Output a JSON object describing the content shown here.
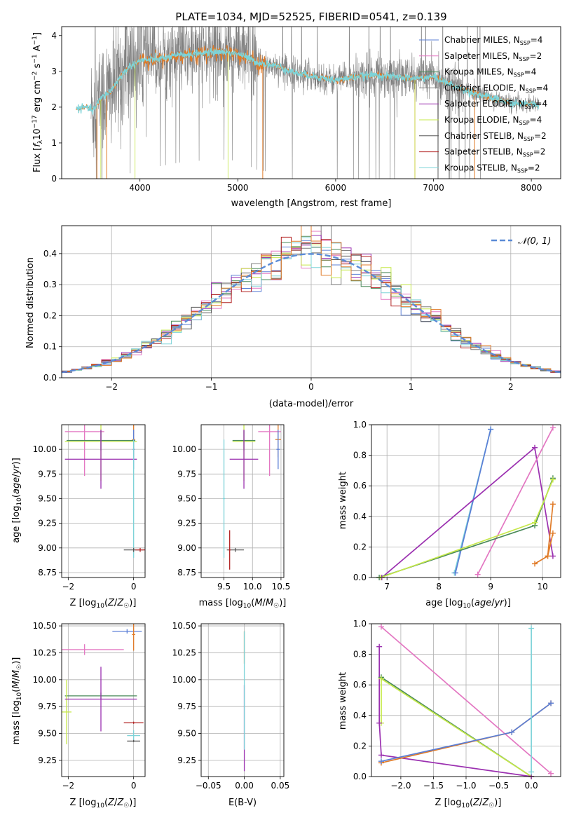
{
  "figure": {
    "title": "PLATE=1034, MJD=52525, FIBERID=0541, z=0.139"
  },
  "colors": {
    "Chabrier MILES": "#5b7fd6",
    "Salpeter MILES": "#e377c2",
    "Kroupa MILES": "#4a8a5a",
    "Chabrier ELODIE": "#7f7f7f",
    "Salpeter ELODIE": "#9b30b0",
    "Kroupa ELODIE": "#c6e84a",
    "Chabrier STELIB": "#555555",
    "Salpeter STELIB": "#b22222",
    "Kroupa STELIB": "#7dd3d8",
    "orange": "#e07b28"
  },
  "chart_data": [
    {
      "id": "spectrum",
      "type": "line",
      "xlabel": "wavelength [Angstrom, rest frame]",
      "ylabel": "Flux [f_λ10^-17 erg cm^-2 s^-1 A^-1]",
      "xlim": [
        3200,
        8300
      ],
      "ylim": [
        0,
        4.25
      ],
      "xticks": [
        4000,
        5000,
        6000,
        7000,
        8000
      ],
      "yticks": [
        0,
        1,
        2,
        3,
        4
      ],
      "legend": [
        {
          "name": "Chabrier MILES",
          "nssp": "4"
        },
        {
          "name": "Salpeter MILES",
          "nssp": "2"
        },
        {
          "name": "Kroupa MILES",
          "nssp": "4"
        },
        {
          "name": "Chabrier ELODIE",
          "nssp": "4"
        },
        {
          "name": "Salpeter ELODIE",
          "nssp": "4"
        },
        {
          "name": "Kroupa ELODIE",
          "nssp": "4"
        },
        {
          "name": "Chabrier STELIB",
          "nssp": "2"
        },
        {
          "name": "Salpeter STELIB",
          "nssp": "2"
        },
        {
          "name": "Kroupa STELIB",
          "nssp": "2"
        }
      ],
      "legend_position": "top-right",
      "model_x": [
        3350,
        3450,
        3520,
        3600,
        3700,
        3800,
        3900,
        4000,
        4200,
        4400,
        4600,
        4800,
        5000,
        5200,
        5400,
        5600,
        5800,
        6000,
        6200,
        6400,
        6600,
        6800,
        7000,
        7200,
        7400,
        7600,
        7800,
        8000,
        8080
      ],
      "model_y": [
        1.95,
        2.0,
        1.9,
        2.25,
        2.45,
        2.85,
        3.15,
        3.3,
        3.35,
        3.45,
        3.5,
        3.55,
        3.5,
        3.25,
        3.15,
        2.95,
        2.85,
        2.75,
        2.85,
        2.9,
        2.85,
        2.8,
        2.85,
        2.6,
        2.4,
        2.25,
        2.1,
        2.1,
        2.05
      ],
      "data_range": [
        3500,
        8080
      ]
    },
    {
      "id": "residuals",
      "type": "step",
      "xlabel": "(data-model)/error",
      "ylabel": "Normed distribution",
      "xlim": [
        -2.5,
        2.5
      ],
      "ylim": [
        0,
        0.49
      ],
      "xticks": [
        -2,
        -1,
        0,
        1,
        2
      ],
      "yticks": [
        0.0,
        0.1,
        0.2,
        0.3,
        0.4
      ],
      "grid": true,
      "legend": [
        {
          "name": "𝒩(0, 1)"
        }
      ],
      "legend_position": "top-right",
      "bin_width": 0.1
    },
    {
      "id": "age_vs_Z",
      "type": "scatter",
      "xlabel": "Z [log10(Z/Z☉)]",
      "ylabel": "age  [log10(age/yr)]",
      "xlim": [
        -2.2,
        0.35
      ],
      "ylim": [
        8.7,
        10.25
      ],
      "xticks": [
        -2,
        0
      ],
      "yticks": [
        8.75,
        9.0,
        9.25,
        9.5,
        9.75,
        10.0
      ],
      "grid": true,
      "points": [
        {
          "series": "Salpeter MILES",
          "x": -1.5,
          "y": 10.18,
          "xerr": 0.6,
          "yerr": 0.45
        },
        {
          "series": "Kroupa ELODIE",
          "x": -1.0,
          "y": 10.08,
          "xerr": 1.1,
          "yerr": 0.4
        },
        {
          "series": "Kroupa MILES",
          "x": -1.0,
          "y": 10.09,
          "xerr": 1.05,
          "yerr": 0.1
        },
        {
          "series": "Salpeter ELODIE",
          "x": -1.0,
          "y": 9.9,
          "xerr": 1.1,
          "yerr": 0.3
        },
        {
          "series": "orange",
          "x": 0.0,
          "y": 10.1,
          "xerr": 0.05,
          "yerr": 0.18
        },
        {
          "series": "Chabrier MILES",
          "x": 0.0,
          "y": 10.0,
          "xerr": 0.03,
          "yerr": 0.2
        },
        {
          "series": "Kroupa STELIB",
          "x": 0.0,
          "y": 9.5,
          "xerr": 0.02,
          "yerr": 0.6
        },
        {
          "series": "Chabrier STELIB",
          "x": 0.0,
          "y": 8.98,
          "xerr": 0.3,
          "yerr": 0.02
        },
        {
          "series": "Salpeter STELIB",
          "x": 0.2,
          "y": 8.98,
          "xerr": 0.15,
          "yerr": 0.02
        }
      ]
    },
    {
      "id": "age_vs_mass",
      "type": "scatter",
      "xlabel": "mass [log10(M/M☉)]",
      "ylabel": "",
      "xlim": [
        9.1,
        10.55
      ],
      "ylim": [
        8.7,
        10.25
      ],
      "xticks": [
        9.5,
        10.0,
        10.5
      ],
      "yticks": [
        8.75,
        9.0,
        9.25,
        9.5,
        9.75,
        10.0
      ],
      "grid": true,
      "points": [
        {
          "series": "Salpeter MILES",
          "x": 10.3,
          "y": 10.18,
          "xerr": 0.2,
          "yerr": 0.45
        },
        {
          "series": "Kroupa ELODIE",
          "x": 9.85,
          "y": 10.08,
          "xerr": 0.2,
          "yerr": 0.4
        },
        {
          "series": "Kroupa MILES",
          "x": 9.85,
          "y": 10.09,
          "xerr": 0.2,
          "yerr": 0.1
        },
        {
          "series": "Salpeter ELODIE",
          "x": 9.85,
          "y": 9.9,
          "xerr": 0.25,
          "yerr": 0.3
        },
        {
          "series": "orange",
          "x": 10.45,
          "y": 10.1,
          "xerr": 0.05,
          "yerr": 0.18
        },
        {
          "series": "Chabrier MILES",
          "x": 10.45,
          "y": 10.0,
          "xerr": 0.03,
          "yerr": 0.2
        },
        {
          "series": "Kroupa STELIB",
          "x": 9.5,
          "y": 9.5,
          "xerr": 0.02,
          "yerr": 0.6
        },
        {
          "series": "Chabrier STELIB",
          "x": 9.7,
          "y": 8.98,
          "xerr": 0.15,
          "yerr": 0.02
        },
        {
          "series": "Salpeter STELIB",
          "x": 9.6,
          "y": 8.98,
          "xerr": 0.02,
          "yerr": 0.2
        }
      ]
    },
    {
      "id": "weight_vs_age",
      "type": "line",
      "xlabel": "age  [log10(age/yr)]",
      "ylabel": "mass weight",
      "xlim": [
        6.7,
        10.35
      ],
      "ylim": [
        0,
        1.0
      ],
      "xticks": [
        7,
        8,
        9,
        10
      ],
      "yticks": [
        0.0,
        0.2,
        0.4,
        0.6,
        0.8,
        1.0
      ],
      "grid": true,
      "series": [
        {
          "series": "Kroupa STELIB",
          "x": [
            8.3,
            9.0
          ],
          "y": [
            0.03,
            0.97
          ]
        },
        {
          "series": "Chabrier MILES",
          "x": [
            8.32,
            9.0
          ],
          "y": [
            0.03,
            0.97
          ]
        },
        {
          "series": "Salpeter ELODIE",
          "x": [
            6.9,
            9.85,
            10.2
          ],
          "y": [
            0.0,
            0.85,
            0.14
          ]
        },
        {
          "series": "Salpeter MILES",
          "x": [
            8.75,
            10.2
          ],
          "y": [
            0.02,
            0.98
          ]
        },
        {
          "series": "Kroupa MILES",
          "x": [
            6.85,
            9.85,
            10.2
          ],
          "y": [
            0.0,
            0.34,
            0.65
          ]
        },
        {
          "series": "Kroupa ELODIE",
          "x": [
            6.88,
            9.85,
            10.2
          ],
          "y": [
            0.0,
            0.36,
            0.64
          ]
        },
        {
          "series": "orange",
          "x": [
            9.85,
            10.1,
            10.2
          ],
          "y": [
            0.09,
            0.14,
            0.48
          ]
        },
        {
          "series": "orange",
          "x": [
            10.1,
            10.2
          ],
          "y": [
            0.14,
            0.29
          ]
        }
      ]
    },
    {
      "id": "mass_vs_Z",
      "type": "scatter",
      "xlabel": "Z [log10(Z/Z☉)]",
      "ylabel": "mass [log10(M/M☉)]",
      "xlim": [
        -2.2,
        0.35
      ],
      "ylim": [
        9.1,
        10.52
      ],
      "xticks": [
        -2,
        0
      ],
      "yticks": [
        9.25,
        9.5,
        9.75,
        10.0,
        10.25,
        10.5
      ],
      "grid": true,
      "points": [
        {
          "series": "Chabrier MILES",
          "x": -0.2,
          "y": 10.45,
          "xerr": 0.45,
          "yerr": 0.02
        },
        {
          "series": "orange",
          "x": 0.0,
          "y": 10.42,
          "xerr": 0.05,
          "yerr": 0.15
        },
        {
          "series": "Salpeter MILES",
          "x": -1.5,
          "y": 10.28,
          "xerr": 1.2,
          "yerr": 0.05
        },
        {
          "series": "Kroupa MILES",
          "x": -1.0,
          "y": 9.85,
          "xerr": 1.1,
          "yerr": 0.03
        },
        {
          "series": "Kroupa ELODIE",
          "x": -2.05,
          "y": 9.7,
          "xerr": 0.15,
          "yerr": 0.3
        },
        {
          "series": "Salpeter ELODIE",
          "x": -1.0,
          "y": 9.82,
          "xerr": 1.1,
          "yerr": 0.3
        },
        {
          "series": "Salpeter STELIB",
          "x": 0.0,
          "y": 9.6,
          "xerr": 0.3,
          "yerr": 0.01
        },
        {
          "series": "Kroupa STELIB",
          "x": 0.0,
          "y": 9.48,
          "xerr": 0.2,
          "yerr": 0.05
        },
        {
          "series": "Chabrier STELIB",
          "x": 0.0,
          "y": 9.43,
          "xerr": 0.2,
          "yerr": 0.01
        }
      ]
    },
    {
      "id": "mass_vs_ebv",
      "type": "scatter",
      "xlabel": "E(B-V)",
      "ylabel": "",
      "xlim": [
        -0.06,
        0.055
      ],
      "ylim": [
        9.1,
        10.52
      ],
      "xticks": [
        -0.05,
        0.0,
        0.05
      ],
      "yticks": [
        9.25,
        9.5,
        9.75,
        10.0,
        10.25,
        10.5
      ],
      "grid": true,
      "points": [
        {
          "series": "Salpeter ELODIE",
          "x": 0.0,
          "y": 9.55,
          "xerr": 0.0,
          "yerr": 0.4
        },
        {
          "series": "orange",
          "x": 0.0,
          "y": 10.3,
          "xerr": 0.0,
          "yerr": 0.15
        },
        {
          "series": "Kroupa STELIB",
          "x": 0.0,
          "y": 9.9,
          "xerr": 0.0,
          "yerr": 0.55
        }
      ]
    },
    {
      "id": "weight_vs_Z",
      "type": "line",
      "xlabel": "Z [log10(Z/Z☉)]",
      "ylabel": "mass weight",
      "xlim": [
        -2.45,
        0.45
      ],
      "ylim": [
        0,
        1.0
      ],
      "xticks": [
        -2.0,
        -1.5,
        -1.0,
        -0.5,
        0.0
      ],
      "yticks": [
        0.0,
        0.2,
        0.4,
        0.6,
        0.8,
        1.0
      ],
      "grid": true,
      "series": [
        {
          "series": "Salpeter MILES",
          "x": [
            -2.3,
            0.3
          ],
          "y": [
            0.98,
            0.02
          ]
        },
        {
          "series": "Kroupa MILES",
          "x": [
            -2.3,
            0.0
          ],
          "y": [
            0.65,
            0.0
          ]
        },
        {
          "series": "Kroupa ELODIE",
          "x": [
            -2.3,
            -2.3,
            0.0
          ],
          "y": [
            0.35,
            0.64,
            0.0
          ]
        },
        {
          "series": "Salpeter ELODIE",
          "x": [
            -2.33,
            -2.33,
            -2.3,
            0.0
          ],
          "y": [
            0.85,
            0.35,
            0.14,
            0.0
          ]
        },
        {
          "series": "orange",
          "x": [
            -2.3,
            -0.3,
            0.3
          ],
          "y": [
            0.09,
            0.29,
            0.48
          ]
        },
        {
          "series": "Chabrier MILES",
          "x": [
            -2.3,
            -0.3,
            0.3
          ],
          "y": [
            0.1,
            0.29,
            0.48
          ]
        },
        {
          "series": "Kroupa STELIB",
          "x": [
            0.0,
            0.0
          ],
          "y": [
            0.03,
            0.97
          ]
        }
      ]
    }
  ]
}
